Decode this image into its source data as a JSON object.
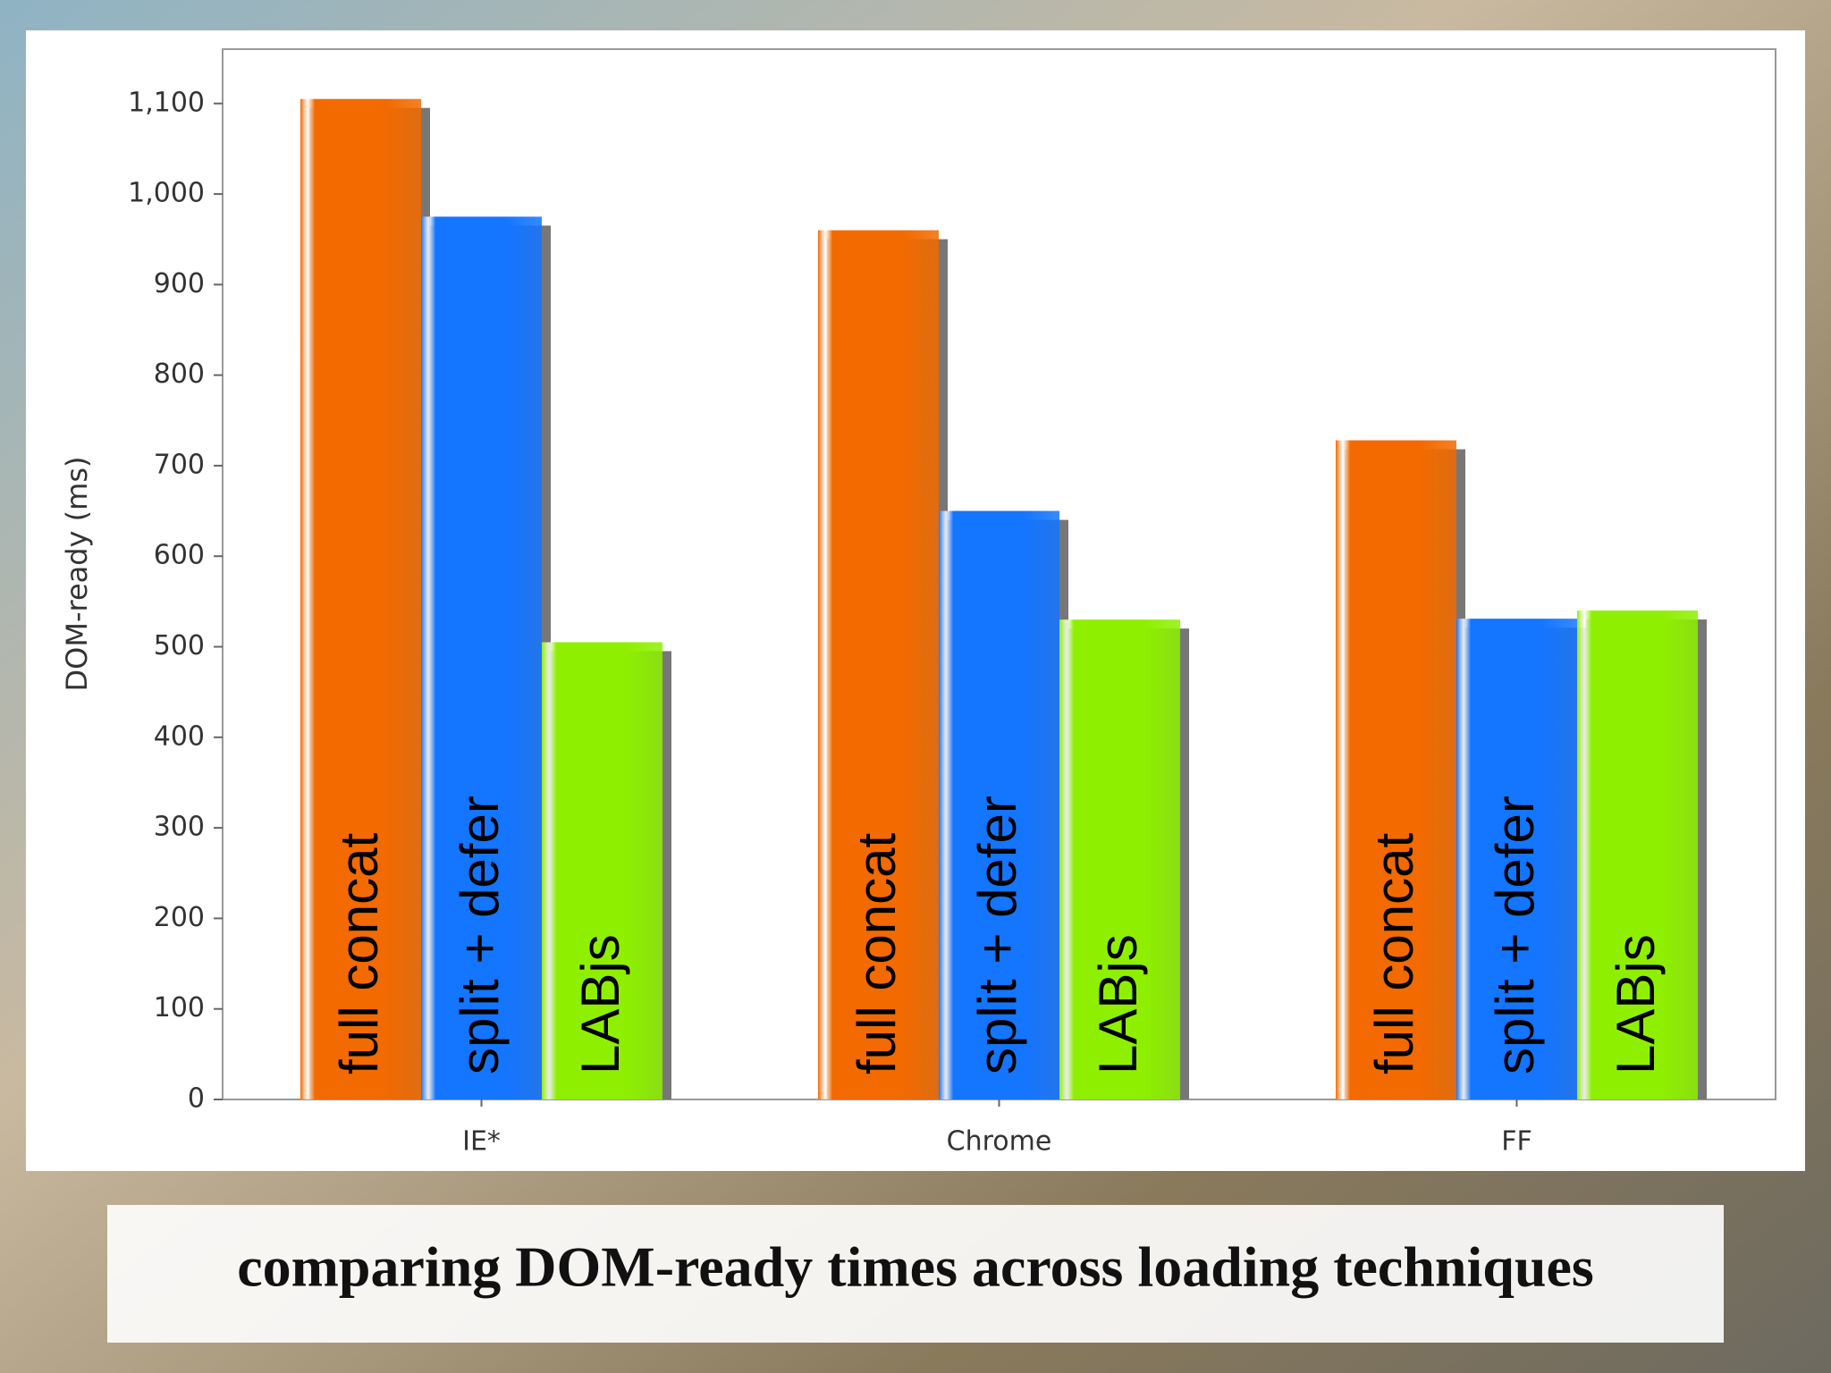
{
  "chart_data": {
    "type": "bar",
    "y_label": "DOM-ready (ms)",
    "caption": "comparing DOM-ready times across loading techniques",
    "categories": [
      "IE*",
      "Chrome",
      "FF"
    ],
    "series": [
      {
        "name": "full concat",
        "color": "#f26a00",
        "values": [
          1105,
          960,
          728
        ]
      },
      {
        "name": "split + defer",
        "color": "#1475ff",
        "values": [
          975,
          650,
          531
        ]
      },
      {
        "name": "LABjs",
        "color": "#8ef000",
        "values": [
          505,
          530,
          540
        ]
      }
    ],
    "ylim": [
      0,
      1160
    ],
    "yticks": [
      0,
      100,
      200,
      300,
      400,
      500,
      600,
      700,
      800,
      900,
      {
        "value": 1000,
        "label": "1,000"
      },
      {
        "value": 1100,
        "label": "1,100"
      }
    ],
    "grid": false
  }
}
